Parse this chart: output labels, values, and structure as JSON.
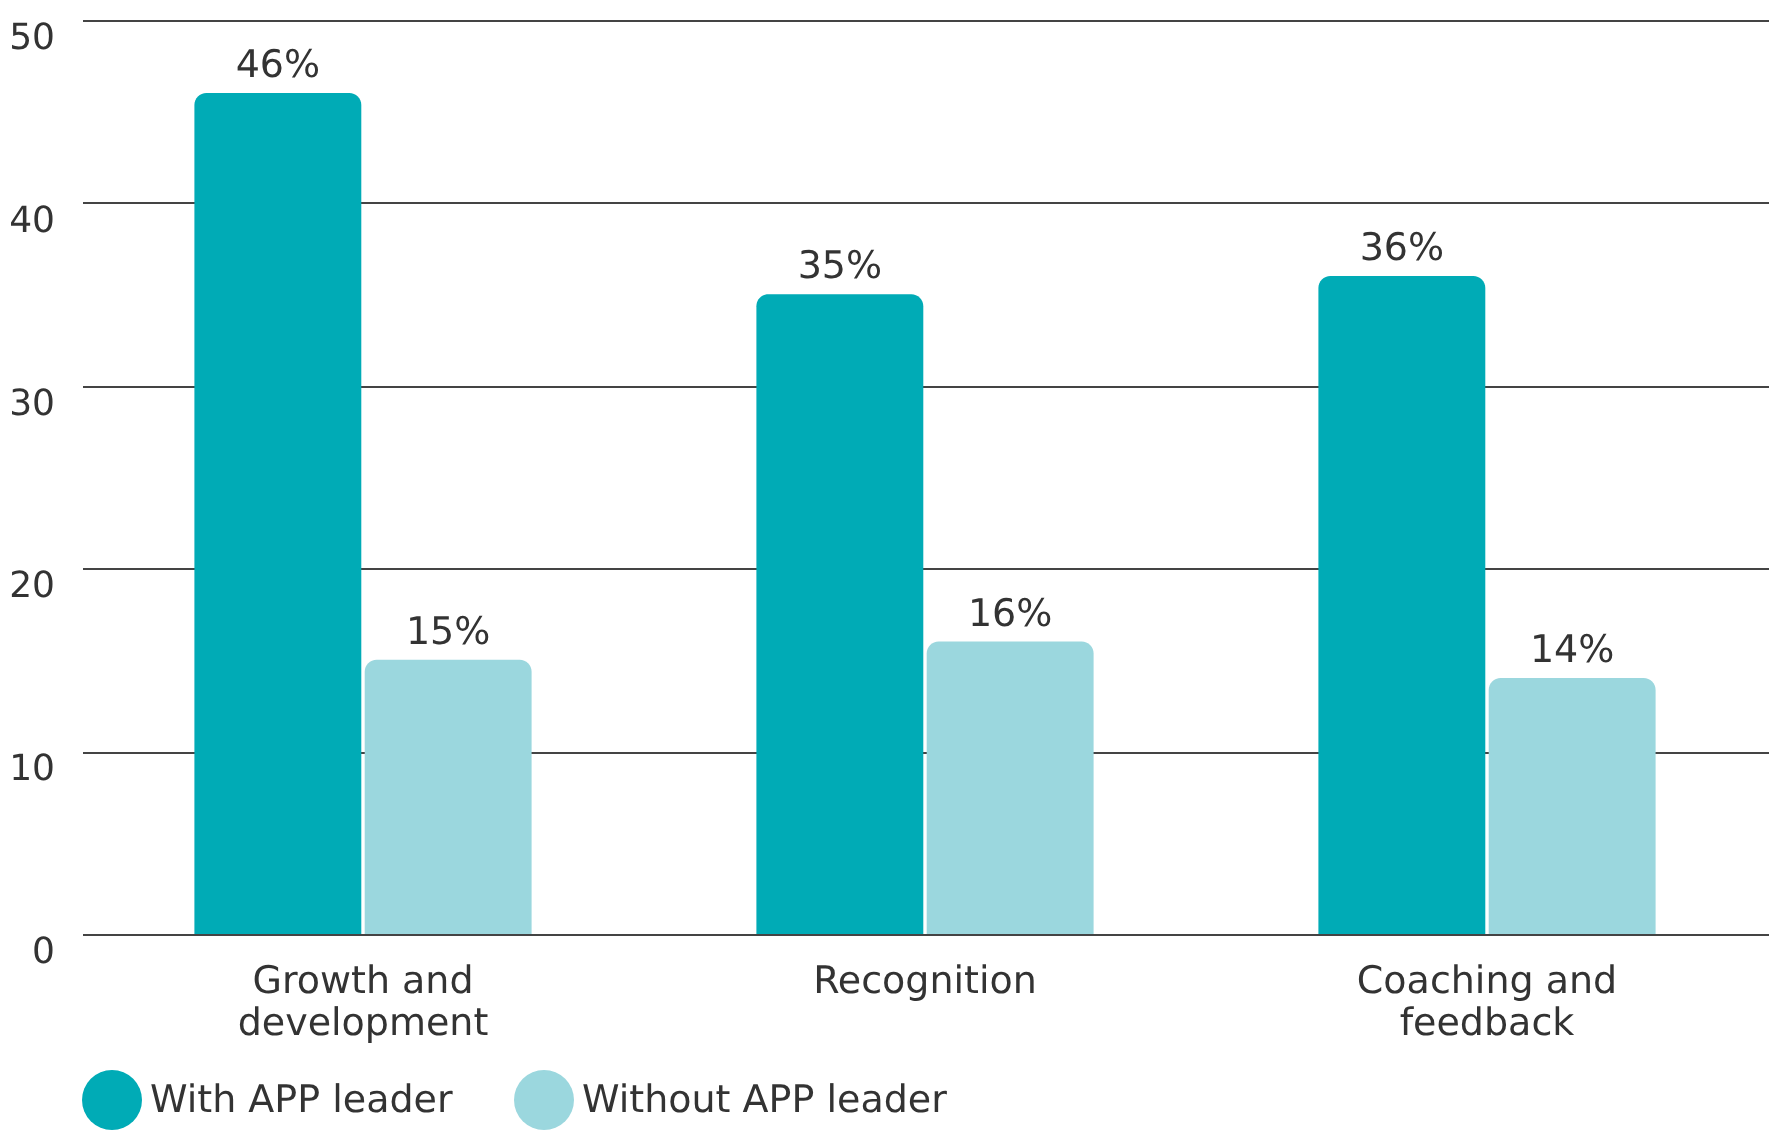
{
  "chart_data": {
    "type": "bar",
    "categories": [
      "Growth and development",
      "Recognition",
      "Coaching and feedback"
    ],
    "series": [
      {
        "name": "With APP leader",
        "color": "#00abb6",
        "values": [
          46,
          35,
          36
        ],
        "value_labels": [
          "46%",
          "35%",
          "36%"
        ]
      },
      {
        "name": "Without APP leader",
        "color": "#9bd7de",
        "values": [
          15,
          16,
          14
        ],
        "value_labels": [
          "15%",
          "16%",
          "14%"
        ]
      }
    ],
    "ylim": [
      0,
      50
    ],
    "yticks": [
      0,
      10,
      20,
      30,
      40,
      50
    ],
    "grid": "y",
    "legend": "bottom"
  }
}
